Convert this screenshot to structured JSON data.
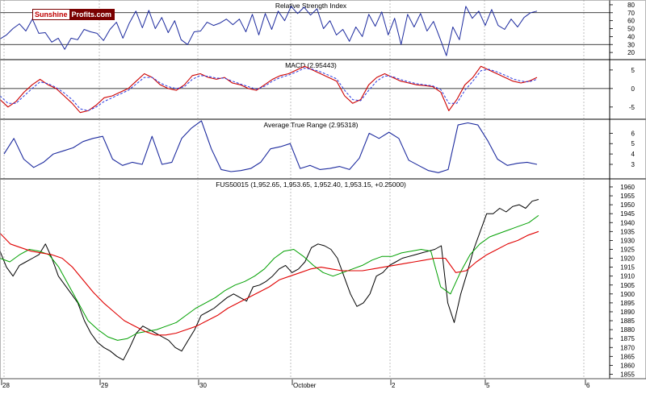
{
  "watermark": {
    "part1": "Sunshine",
    "part2": "Profits.com"
  },
  "colors": {
    "rsi": "#1c2a9e",
    "macd": "#cc0000",
    "signal": "#2a3ae0",
    "atr": "#1c2a9e",
    "price": "#000000",
    "ma_short": "#00a000",
    "ma_long": "#e00000",
    "grid": "#b0b0b0",
    "axis": "#000000"
  },
  "chart_data": [
    {
      "type": "line",
      "title": "Relative Strength Index",
      "ylim": [
        11,
        86
      ],
      "yticks": [
        80,
        70,
        60,
        50,
        40,
        30,
        20
      ],
      "reference_lines": [
        30,
        70
      ],
      "series": [
        {
          "values": [
            37,
            42,
            50,
            56,
            47,
            62,
            44,
            45,
            33,
            38,
            24,
            38,
            36,
            49,
            46,
            44,
            35,
            49,
            58,
            38,
            57,
            72,
            51,
            73,
            50,
            64,
            45,
            60,
            36,
            30,
            46,
            47,
            58,
            54,
            57,
            62,
            55,
            62,
            46,
            68,
            42,
            69,
            49,
            72,
            60,
            78,
            69,
            77,
            67,
            75,
            50,
            60,
            42,
            49,
            34,
            52,
            40,
            68,
            53,
            71,
            42,
            63,
            30,
            68,
            52,
            69,
            47,
            59,
            38,
            16,
            52,
            36,
            78,
            63,
            72,
            54,
            74,
            54,
            49,
            62,
            52,
            64,
            70,
            72
          ]
        }
      ]
    },
    {
      "type": "line",
      "title": "MACD (2.95443)",
      "ylim": [
        -8.3,
        7.8
      ],
      "yticks": [
        5,
        0,
        -5
      ],
      "reference_lines": [
        0
      ],
      "series": [
        {
          "values": [
            -3,
            -5,
            -3.5,
            -1,
            1,
            2.5,
            1,
            0,
            -2,
            -4,
            -6.5,
            -6,
            -4.5,
            -2.5,
            -2,
            -1,
            0,
            2,
            4,
            3,
            1,
            0,
            -0.5,
            1,
            3.5,
            4,
            3,
            2.5,
            3,
            1.5,
            1,
            0,
            -0.5,
            1,
            2.5,
            3.5,
            4,
            5,
            6,
            5,
            4,
            3,
            2,
            -2,
            -4,
            -3,
            1,
            3,
            4,
            3,
            2,
            1.5,
            1,
            0.8,
            0.5,
            -1,
            -6,
            -3,
            1,
            3,
            6,
            5,
            4,
            3,
            2,
            1.5,
            2,
            3
          ]
        },
        {
          "values": [
            -2,
            -4,
            -4,
            -2,
            0,
            1.8,
            1.3,
            0.3,
            -1.2,
            -3,
            -5.5,
            -6,
            -5,
            -3.5,
            -2.5,
            -1.5,
            -0.5,
            1.2,
            3,
            3,
            1.5,
            0.5,
            0,
            0.5,
            2.5,
            3.5,
            3.3,
            2.8,
            2.8,
            2,
            1.2,
            0.5,
            -0.2,
            0.6,
            2,
            3,
            3.6,
            4.5,
            5.5,
            5.2,
            4.5,
            3.6,
            2.6,
            -0.5,
            -3,
            -3.3,
            -0.5,
            2,
            3.4,
            3.2,
            2.4,
            1.8,
            1.3,
            1,
            0.7,
            -0.3,
            -4,
            -4,
            -0.5,
            2,
            4.8,
            5.2,
            4.5,
            3.6,
            2.6,
            2,
            1.8,
            2.5
          ]
        }
      ]
    },
    {
      "type": "line",
      "title": "Average True Range (2.95318)",
      "ylim": [
        1.6,
        7.35
      ],
      "yticks": [
        6,
        5,
        4,
        3
      ],
      "series": [
        {
          "values": [
            4,
            5.5,
            3.5,
            2.7,
            3.2,
            4,
            4.3,
            4.6,
            5.2,
            5.5,
            5.7,
            3.5,
            2.9,
            3.2,
            3,
            5.7,
            3,
            3.2,
            5.5,
            6.5,
            7.2,
            4.5,
            2.5,
            2.3,
            2.4,
            2.6,
            3.2,
            4.5,
            4.7,
            5,
            2.6,
            2.9,
            2.5,
            2.6,
            2.8,
            2.5,
            3.6,
            6,
            5.5,
            6.1,
            5.5,
            3.4,
            2.9,
            2.4,
            2.2,
            2.5,
            6.8,
            7,
            6.8,
            5.3,
            3.5,
            2.9,
            3.1,
            3.2,
            3
          ]
        }
      ]
    },
    {
      "type": "line",
      "title": "FUS50015 (1,952.65, 1,953.65, 1,952.40, 1,953.15, +0.25000)",
      "ylim": [
        1852.5,
        1964.5
      ],
      "yticks": [
        1960,
        1955,
        1950,
        1945,
        1940,
        1935,
        1930,
        1925,
        1920,
        1915,
        1910,
        1905,
        1900,
        1895,
        1890,
        1885,
        1880,
        1875,
        1870,
        1865,
        1860,
        1855
      ],
      "x_tick_labels": [
        "28",
        "29",
        "30",
        "October",
        "2",
        "5",
        "6"
      ],
      "series": [
        {
          "values": [
            1924,
            1915,
            1910,
            1916,
            1918,
            1920,
            1922,
            1928,
            1920,
            1910,
            1905,
            1900,
            1895,
            1885,
            1878,
            1873,
            1870,
            1868,
            1865,
            1863,
            1870,
            1878,
            1882,
            1880,
            1878,
            1876,
            1874,
            1870,
            1868,
            1874,
            1880,
            1888,
            1890,
            1892,
            1895,
            1898,
            1900,
            1898,
            1896,
            1904,
            1905,
            1907,
            1910,
            1914,
            1916,
            1912,
            1914,
            1918,
            1926,
            1928,
            1927,
            1925,
            1920,
            1910,
            1900,
            1893,
            1895,
            1900,
            1910,
            1912,
            1916,
            1918,
            1920,
            1921,
            1922,
            1923,
            1924,
            1925,
            1927,
            1895,
            1884,
            1900,
            1912,
            1925,
            1935,
            1945,
            1945,
            1948,
            1946,
            1949,
            1950,
            1948,
            1952,
            1953
          ]
        },
        {
          "values": [
            1920,
            1918,
            1922,
            1925,
            1924,
            1922,
            1915,
            1905,
            1895,
            1885,
            1880,
            1876,
            1874,
            1875,
            1878,
            1879,
            1880,
            1882,
            1884,
            1888,
            1892,
            1895,
            1898,
            1902,
            1905,
            1907,
            1910,
            1914,
            1920,
            1924,
            1925,
            1921,
            1916,
            1912,
            1910,
            1912,
            1914,
            1916,
            1919,
            1921,
            1921,
            1923,
            1924,
            1925,
            1924,
            1904,
            1900,
            1912,
            1922,
            1928,
            1932,
            1934,
            1936,
            1938,
            1940,
            1944
          ]
        },
        {
          "values": [
            1934,
            1928,
            1926,
            1924,
            1923,
            1922,
            1920,
            1915,
            1908,
            1901,
            1895,
            1890,
            1885,
            1882,
            1879,
            1877,
            1877,
            1878,
            1880,
            1882,
            1885,
            1888,
            1892,
            1895,
            1898,
            1901,
            1904,
            1908,
            1910,
            1912,
            1914,
            1915,
            1914,
            1913,
            1913,
            1913,
            1914,
            1915,
            1916,
            1917,
            1918,
            1919,
            1920,
            1920,
            1912,
            1913,
            1918,
            1922,
            1925,
            1928,
            1930,
            1933,
            1935
          ]
        }
      ]
    }
  ]
}
